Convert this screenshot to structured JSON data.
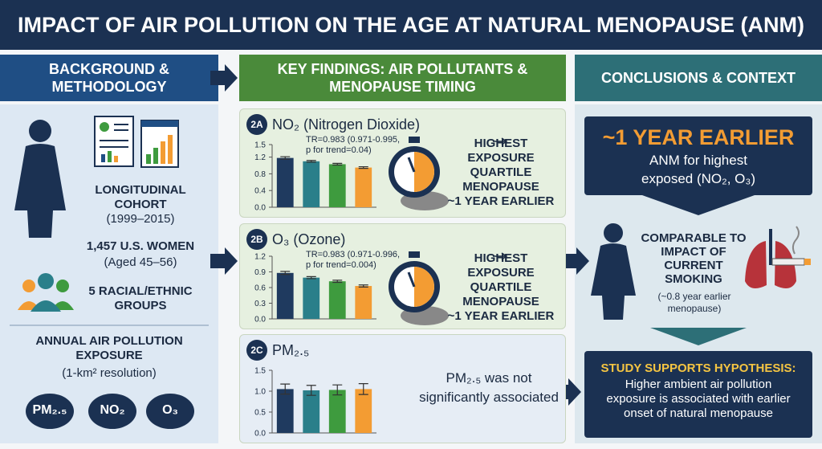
{
  "header": {
    "title": "IMPACT OF AIR POLLUTION ON THE AGE AT NATURAL MENOPAUSE (ANM)"
  },
  "sections": {
    "background": "BACKGROUND & METHODOLOGY",
    "findings": "KEY FINDINGS: AIR POLLUTANTS & MENOPAUSE TIMING",
    "conclusions": "CONCLUSIONS & CONTEXT"
  },
  "background": {
    "cohort": "LONGITUDINAL COHORT",
    "years": "(1999–2015)",
    "women": "1,457 U.S. WOMEN",
    "ages": "(Aged 45–56)",
    "groups": "5 RACIAL/ETHNIC GROUPS",
    "exposure": "ANNUAL AIR POLLUTION EXPOSURE",
    "resolution": "(1-km² resolution)",
    "pollutants": [
      "PM₂.₅",
      "NO₂",
      "O₃"
    ]
  },
  "chart_data": [
    {
      "type": "bar",
      "label": "2A",
      "title": "NO₂ (Nitrogen Dioxide)",
      "annotation": [
        "TR=0.983 (0.971-0.995,",
        "p for trend=0.04)"
      ],
      "categories": [
        null,
        null,
        null,
        null
      ],
      "values": [
        1.18,
        1.1,
        1.03,
        0.95
      ],
      "errors": [
        0.03,
        0.02,
        0.02,
        0.02
      ],
      "colors": [
        "#1f3a5f",
        "#2a7f8a",
        "#3e9b3e",
        "#f39c33"
      ],
      "ylim": [
        0,
        1.5
      ],
      "yticks": [
        {
          "value": 0,
          "label": "0.0"
        },
        0.4,
        0.8,
        1.2,
        1.5
      ],
      "finding": [
        "HIGHEST EXPOSURE QUARTILE",
        "MENOPAUSE",
        "~1 YEAR EARLIER"
      ]
    },
    {
      "type": "bar",
      "label": "2B",
      "title": "O₃ (Ozone)",
      "annotation": [
        "TR=0.983 (0.971-0.996,",
        "p for trend=0.004)"
      ],
      "categories": [
        null,
        null,
        null,
        null
      ],
      "values": [
        0.88,
        0.79,
        0.72,
        0.63
      ],
      "errors": [
        0.03,
        0.02,
        0.02,
        0.02
      ],
      "colors": [
        "#1f3a5f",
        "#2a7f8a",
        "#3e9b3e",
        "#f39c33"
      ],
      "ylim": [
        0,
        1.2
      ],
      "yticks": [
        {
          "value": 0,
          "label": "0.0"
        },
        0.3,
        0.6,
        0.9,
        1.2
      ],
      "finding": [
        "HIGHEST EXPOSURE QUARTILE",
        "MENOPAUSE",
        "~1 YEAR EARLIER"
      ]
    },
    {
      "type": "bar",
      "label": "2C",
      "title": "PM₂.₅",
      "categories": [
        null,
        null,
        null,
        null
      ],
      "values": [
        1.05,
        1.02,
        1.03,
        1.05
      ],
      "errors": [
        0.12,
        0.12,
        0.12,
        0.13
      ],
      "colors": [
        "#1f3a5f",
        "#2a7f8a",
        "#3e9b3e",
        "#f39c33"
      ],
      "ylim": [
        0,
        1.5
      ],
      "yticks": [
        {
          "value": 0,
          "label": "0.0"
        },
        0.5,
        {
          "value": 1,
          "label": "1.0"
        },
        1.5
      ],
      "finding": [
        "PM₂.₅ was not significantly associated"
      ]
    }
  ],
  "conclusions": {
    "headline": "~1 YEAR EARLIER",
    "headline_detail": "ANM for highest exposed (NO₂, O₃)",
    "comparison": "COMPARABLE TO IMPACT OF CURRENT SMOKING",
    "comparison_detail": "(~0.8 year earlier menopause)",
    "hypothesis_title": "STUDY SUPPORTS HYPOTHESIS:",
    "hypothesis": "Higher ambient air pollution exposure is associated with earlier onset of natural menopause"
  }
}
